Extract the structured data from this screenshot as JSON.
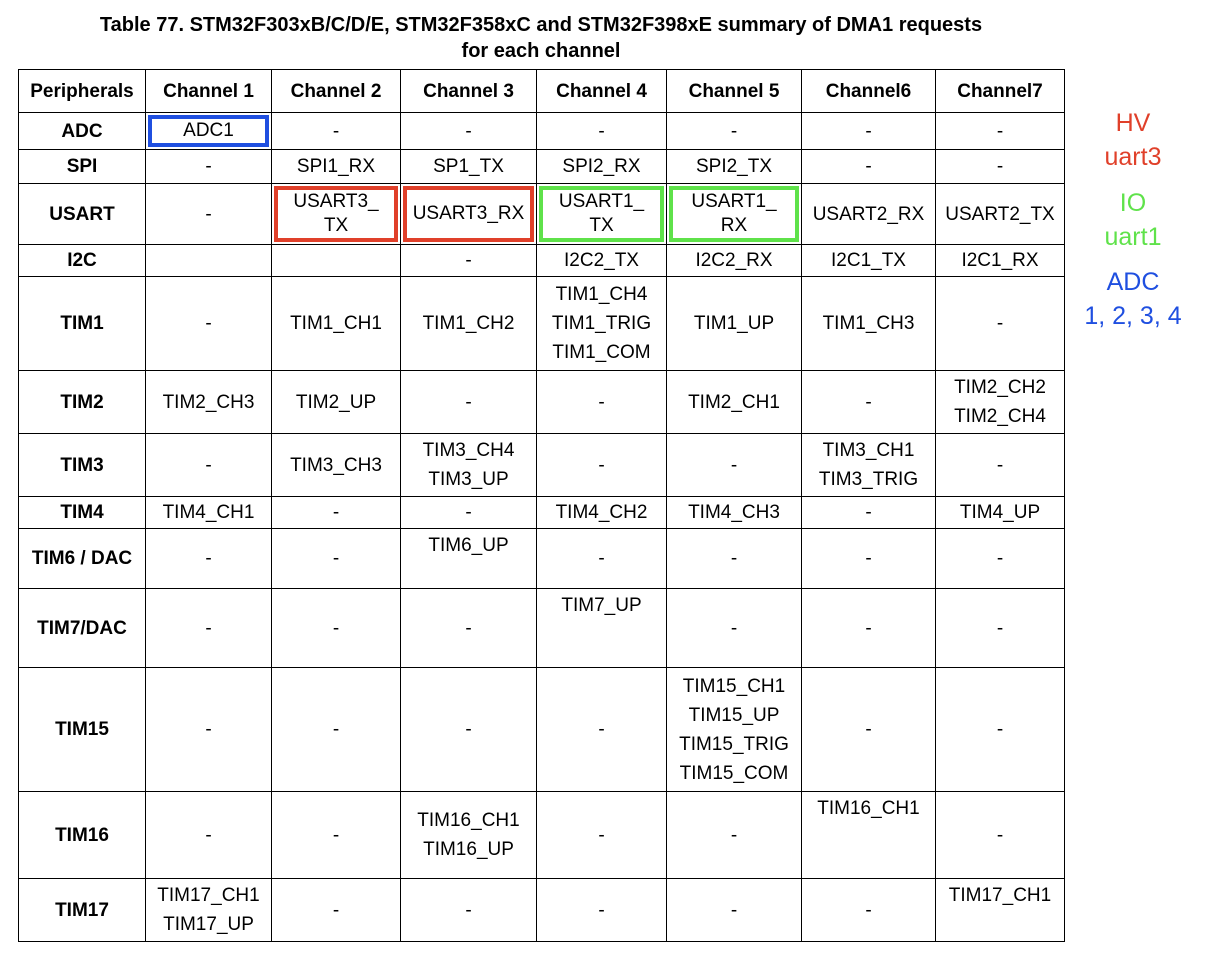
{
  "title": {
    "line1": "Table 77. STM32F303xB/C/D/E, STM32F358xC and STM32F398xE summary of DMA1 requests",
    "line2": "for each channel"
  },
  "colors": {
    "blue": "#1f4fe0",
    "red": "#e0402a",
    "green": "#5fe24a"
  },
  "table": {
    "headers": [
      "Peripherals",
      "Channel 1",
      "Channel 2",
      "Channel 3",
      "Channel 4",
      "Channel 5",
      "Channel6",
      "Channel7"
    ],
    "rows": [
      {
        "name": "ADC",
        "cells": [
          [
            "ADC1"
          ],
          [
            "-"
          ],
          [
            "-"
          ],
          [
            "-"
          ],
          [
            "-"
          ],
          [
            "-"
          ],
          [
            "-"
          ]
        ]
      },
      {
        "name": "SPI",
        "cells": [
          [
            "-"
          ],
          [
            "SPI1_RX"
          ],
          [
            "SP1_TX"
          ],
          [
            "SPI2_RX"
          ],
          [
            "SPI2_TX"
          ],
          [
            "-"
          ],
          [
            "-"
          ]
        ]
      },
      {
        "name": "USART",
        "cells": [
          [
            "-"
          ],
          [
            "USART3_",
            "TX"
          ],
          [
            "USART3_RX"
          ],
          [
            "USART1_",
            "TX"
          ],
          [
            "USART1_",
            "RX"
          ],
          [
            "USART2_RX"
          ],
          [
            "USART2_TX"
          ]
        ]
      },
      {
        "name": "I2C",
        "cells": [
          [],
          [],
          [
            "-"
          ],
          [
            "I2C2_TX"
          ],
          [
            "I2C2_RX"
          ],
          [
            "I2C1_TX"
          ],
          [
            "I2C1_RX"
          ]
        ]
      },
      {
        "name": "TIM1",
        "cells": [
          [
            "-"
          ],
          [
            "TIM1_CH1"
          ],
          [
            "TIM1_CH2"
          ],
          [
            "TIM1_CH4",
            "TIM1_TRIG",
            "TIM1_COM"
          ],
          [
            "TIM1_UP"
          ],
          [
            "TIM1_CH3"
          ],
          [
            "-"
          ]
        ]
      },
      {
        "name": "TIM2",
        "cells": [
          [
            "TIM2_CH3"
          ],
          [
            "TIM2_UP"
          ],
          [
            "-"
          ],
          [
            "-"
          ],
          [
            "TIM2_CH1"
          ],
          [
            "-"
          ],
          [
            "TIM2_CH2",
            "TIM2_CH4"
          ]
        ]
      },
      {
        "name": "TIM3",
        "cells": [
          [
            "-"
          ],
          [
            "TIM3_CH3"
          ],
          [
            "TIM3_CH4",
            "TIM3_UP"
          ],
          [
            "-"
          ],
          [
            "-"
          ],
          [
            "TIM3_CH1",
            "TIM3_TRIG"
          ],
          [
            "-"
          ]
        ]
      },
      {
        "name": "TIM4",
        "cells": [
          [
            "TIM4_CH1"
          ],
          [
            "-"
          ],
          [
            "-"
          ],
          [
            "TIM4_CH2"
          ],
          [
            "TIM4_CH3"
          ],
          [
            "-"
          ],
          [
            "TIM4_UP"
          ]
        ]
      },
      {
        "name": "TIM6 / DAC",
        "cells": [
          [
            "-"
          ],
          [
            "-"
          ],
          [
            "TIM6_UP"
          ],
          [
            "-"
          ],
          [
            "-"
          ],
          [
            "-"
          ],
          [
            "-"
          ]
        ]
      },
      {
        "name": "TIM7/DAC",
        "cells": [
          [
            "-"
          ],
          [
            "-"
          ],
          [
            "-"
          ],
          [
            "TIM7_UP"
          ],
          [
            "-"
          ],
          [
            "-"
          ],
          [
            "-"
          ]
        ]
      },
      {
        "name": "TIM15",
        "cells": [
          [
            "-"
          ],
          [
            "-"
          ],
          [
            "-"
          ],
          [
            "-"
          ],
          [
            "TIM15_CH1",
            "TIM15_UP",
            "TIM15_TRIG",
            "TIM15_COM"
          ],
          [
            "-"
          ],
          [
            "-"
          ]
        ]
      },
      {
        "name": "TIM16",
        "cells": [
          [
            "-"
          ],
          [
            "-"
          ],
          [
            "TIM16_CH1",
            "TIM16_UP"
          ],
          [
            "-"
          ],
          [
            "-"
          ],
          [
            "TIM16_CH1"
          ],
          [
            "-"
          ]
        ]
      },
      {
        "name": "TIM17",
        "cells": [
          [
            "TIM17_CH1",
            "TIM17_UP"
          ],
          [
            "-"
          ],
          [
            "-"
          ],
          [
            "-"
          ],
          [
            "-"
          ],
          [
            "-"
          ],
          [
            "TIM17_CH1"
          ]
        ]
      }
    ]
  },
  "highlights": [
    {
      "row": 0,
      "col": 0,
      "color": "blue"
    },
    {
      "row": 2,
      "col": 1,
      "color": "red"
    },
    {
      "row": 2,
      "col": 2,
      "color": "red"
    },
    {
      "row": 2,
      "col": 3,
      "color": "green"
    },
    {
      "row": 2,
      "col": 4,
      "color": "green"
    }
  ],
  "legend": {
    "hv": {
      "line1": "HV",
      "line2": "uart3",
      "color": "#e0402a"
    },
    "io": {
      "line1": "IO",
      "line2": "uart1",
      "color": "#5fe24a"
    },
    "adc": {
      "line1": "ADC",
      "line2": "1, 2, 3, 4",
      "color": "#1f4fe0"
    }
  }
}
